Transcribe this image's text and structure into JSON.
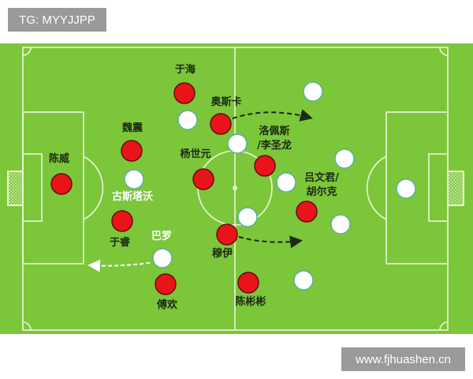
{
  "watermarks": {
    "top_left": "TG: MYYJJPP",
    "bottom_right": "www.fjhuashen.cn"
  },
  "colors": {
    "pitch": "#7cc63a",
    "lines": "#eaf7d8",
    "team_red": "#e8141a",
    "team_white": "#ffffff"
  },
  "red_team": [
    {
      "name": "陈威"
    },
    {
      "name": "魏震"
    },
    {
      "name": "于海"
    },
    {
      "name": "奥斯卡"
    },
    {
      "name": "杨世元"
    },
    {
      "name": "洛佩斯",
      "name2": "/李圣龙"
    },
    {
      "name": "吕文君/",
      "name2": "胡尔克"
    },
    {
      "name": "于睿"
    },
    {
      "name": "穆伊"
    },
    {
      "name": "傅欢"
    },
    {
      "name": "陈彬彬"
    }
  ],
  "white_team_labels": {
    "gustavo": "古斯塔沃",
    "barro": "巴罗"
  }
}
